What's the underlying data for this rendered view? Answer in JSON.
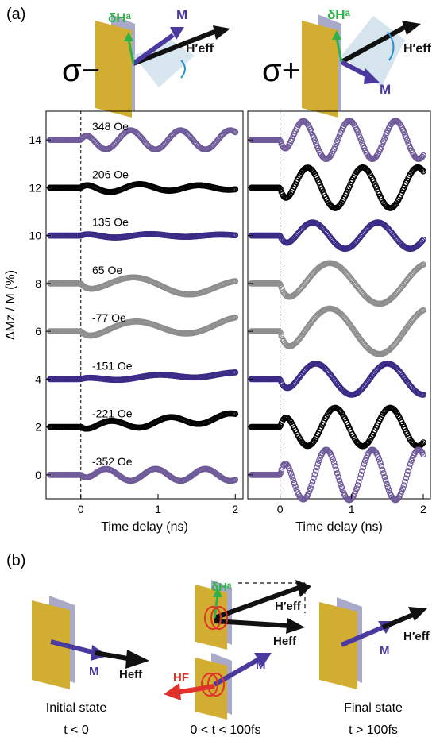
{
  "panel_a_label": "(a)",
  "panel_b_label": "(b)",
  "colors": {
    "purple": "#6f5a9a",
    "black": "#000000",
    "indigo": "#3b2a86",
    "gray": "#8e8e8e",
    "slab": "#c9a72a",
    "green": "#2db34a",
    "red": "#e0322a",
    "arrow_dark": "#1a1a1a",
    "arrow_purple": "#4a3aa0",
    "cone": "#b9cfe0"
  },
  "top_left": {
    "sigma": "σ−",
    "dH": "δHᵃ",
    "M": "M",
    "Heff": "H′eff"
  },
  "top_right": {
    "sigma": "σ+",
    "dH": "δHᵃ",
    "M": "M",
    "Heff": "H′eff"
  },
  "chart_data": {
    "type": "line",
    "ylabel": "ΔMz / M (%)",
    "xlabel": "Time delay (ns)",
    "xlim": [
      -0.45,
      2.1
    ],
    "ylim": [
      -1.0,
      15.2
    ],
    "xticks": [
      0,
      1,
      2
    ],
    "yticks": [
      0,
      2,
      4,
      6,
      8,
      10,
      12,
      14
    ],
    "panels": [
      {
        "name": "σ−",
        "series": [
          {
            "label": "348 Oe",
            "offset": 14,
            "amp": 0.4,
            "freq": 1.55,
            "phase": 0.0,
            "decay": 0.0,
            "drift": 0.0,
            "color": "purple"
          },
          {
            "label": "206 Oe",
            "offset": 12,
            "amp": 0.22,
            "freq": 1.3,
            "phase": 0.0,
            "decay": 0.5,
            "drift": 0.0,
            "color": "black"
          },
          {
            "label": "135 Oe",
            "offset": 10,
            "amp": 0.1,
            "freq": 1.1,
            "phase": 0.0,
            "decay": 0.5,
            "drift": 0.0,
            "color": "indigo"
          },
          {
            "label": "65 Oe",
            "offset": 8,
            "amp": 0.32,
            "freq": 0.72,
            "phase": 3.14,
            "decay": 0.0,
            "drift": -0.1,
            "color": "gray"
          },
          {
            "label": "-77 Oe",
            "offset": 6,
            "amp": 0.3,
            "freq": 0.72,
            "phase": 3.14,
            "decay": 0.0,
            "drift": 0.15,
            "color": "gray"
          },
          {
            "label": "-151 Oe",
            "offset": 4,
            "amp": 0.08,
            "freq": 1.0,
            "phase": 0.0,
            "decay": 0.0,
            "drift": 0.1,
            "color": "indigo"
          },
          {
            "label": "-221 Oe",
            "offset": 2,
            "amp": 0.18,
            "freq": 1.3,
            "phase": 3.14,
            "decay": 0.0,
            "drift": 0.2,
            "color": "black"
          },
          {
            "label": "-352 Oe",
            "offset": 0,
            "amp": 0.25,
            "freq": 1.55,
            "phase": 3.14,
            "decay": 0.0,
            "drift": 0.0,
            "color": "purple"
          }
        ]
      },
      {
        "name": "σ+",
        "series": [
          {
            "offset": 14,
            "amp": 0.8,
            "freq": 1.55,
            "phase": 3.14,
            "decay": 0.0,
            "drift": 0.0,
            "color": "purple"
          },
          {
            "offset": 12,
            "amp": 0.85,
            "freq": 1.3,
            "phase": 3.14,
            "decay": 0.0,
            "drift": 0.0,
            "color": "black"
          },
          {
            "offset": 10,
            "amp": 0.55,
            "freq": 1.1,
            "phase": 3.14,
            "decay": 0.0,
            "drift": 0.0,
            "color": "indigo"
          },
          {
            "offset": 8,
            "amp": 0.85,
            "freq": 0.72,
            "phase": 3.14,
            "decay": 0.0,
            "drift": 0.0,
            "color": "gray"
          },
          {
            "offset": 6,
            "amp": 0.95,
            "freq": 0.72,
            "phase": 3.14,
            "decay": 0.0,
            "drift": 0.0,
            "color": "gray"
          },
          {
            "offset": 4,
            "amp": 0.65,
            "freq": 1.0,
            "phase": 3.14,
            "decay": 0.0,
            "drift": 0.0,
            "color": "indigo"
          },
          {
            "offset": 2,
            "amp": 0.8,
            "freq": 1.3,
            "phase": 0.0,
            "decay": 0.0,
            "drift": 0.0,
            "color": "black"
          },
          {
            "offset": 0,
            "amp": 1.05,
            "freq": 1.55,
            "phase": 0.0,
            "decay": 0.0,
            "drift": 0.0,
            "color": "purple"
          }
        ]
      }
    ]
  },
  "bottom": {
    "initial": {
      "title": "Initial state",
      "time": "t < 0",
      "M": "M",
      "Heff": "Heff"
    },
    "middle": {
      "time": "0 < t < 100fs",
      "dH": "δHᵃ",
      "Heff_prime": "H′eff",
      "Heff": "Heff",
      "HF": "HF",
      "M": "M"
    },
    "final": {
      "title": "Final state",
      "time": "t > 100fs",
      "M": "M",
      "Heff_prime": "H′eff"
    }
  }
}
